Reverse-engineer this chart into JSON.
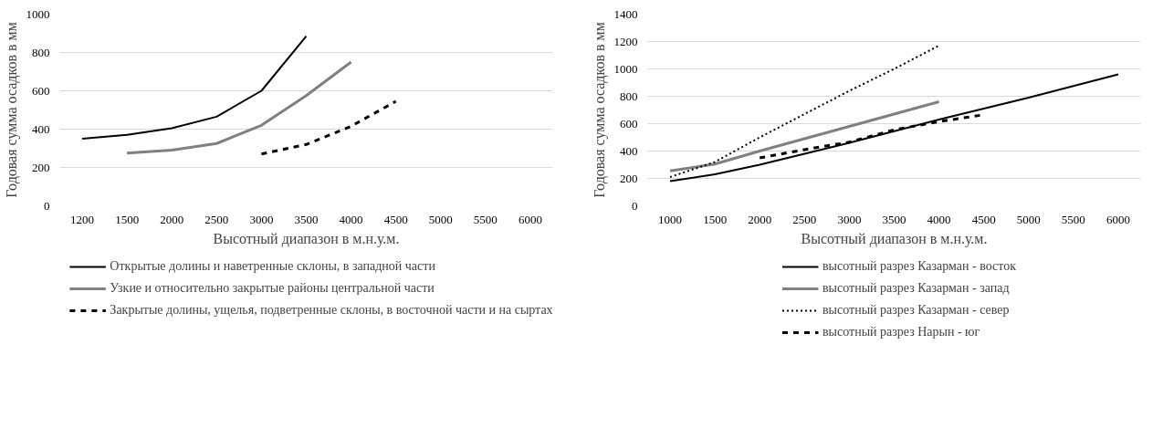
{
  "chart_data": [
    {
      "type": "line",
      "xlabel": "Высотный диапазон в м.н.у.м.",
      "ylabel": "Годовая сумма осадков в мм",
      "categories": [
        "1200",
        "1500",
        "2000",
        "2500",
        "3000",
        "3500",
        "4000",
        "4500",
        "5000",
        "5500",
        "6000"
      ],
      "ylim": [
        0,
        1000
      ],
      "yticks": [
        0,
        200,
        400,
        600,
        800,
        1000
      ],
      "grid": "y",
      "legend": "bottom",
      "marker": "none",
      "series": [
        {
          "name": "Открытые долины и наветренные склоны, в западной части",
          "color": "#000000",
          "line_style": "solid",
          "values": [
            350,
            370,
            405,
            465,
            600,
            885,
            null,
            null,
            null,
            null,
            null
          ]
        },
        {
          "name": "Узкие и относительно закрытые районы центральной части",
          "color": "#808080",
          "line_style": "solid",
          "values": [
            null,
            275,
            290,
            325,
            420,
            575,
            750,
            null,
            null,
            null,
            null
          ]
        },
        {
          "name": "Закрытые долины, ущелья, подветренные склоны, в восточной части и на сыртах",
          "color": "#000000",
          "line_style": "dashed",
          "values": [
            null,
            null,
            null,
            null,
            270,
            320,
            415,
            545,
            null,
            null,
            null
          ]
        }
      ]
    },
    {
      "type": "line",
      "xlabel": "Высотный диапазон в м.н.у.м.",
      "ylabel": "Годовая сумма осадков в мм",
      "categories": [
        "1000",
        "1500",
        "2000",
        "2500",
        "3000",
        "3500",
        "4000",
        "4500",
        "5000",
        "5500",
        "6000"
      ],
      "ylim": [
        0,
        1400
      ],
      "yticks": [
        0,
        200,
        400,
        600,
        800,
        1000,
        1200,
        1400
      ],
      "grid": "y",
      "legend": "bottom",
      "marker": "none",
      "series": [
        {
          "name": "высотный разрез Казарман - восток",
          "color": "#000000",
          "line_style": "solid",
          "values": [
            180,
            230,
            300,
            380,
            460,
            545,
            630,
            710,
            790,
            875,
            960
          ]
        },
        {
          "name": "высотный разрез Казарман - запад",
          "color": "#808080",
          "line_style": "solid",
          "values": [
            255,
            305,
            400,
            490,
            580,
            670,
            760,
            null,
            null,
            null,
            null
          ]
        },
        {
          "name": "высотный разрез Казарман - север",
          "color": "#000000",
          "line_style": "dotted",
          "values": [
            210,
            320,
            500,
            670,
            840,
            1000,
            1170,
            null,
            null,
            null,
            null
          ]
        },
        {
          "name": "высотный разрез Нарын - юг",
          "color": "#000000",
          "line_style": "dashed",
          "values": [
            null,
            null,
            350,
            410,
            465,
            555,
            615,
            665,
            null,
            null,
            null
          ]
        }
      ]
    }
  ]
}
